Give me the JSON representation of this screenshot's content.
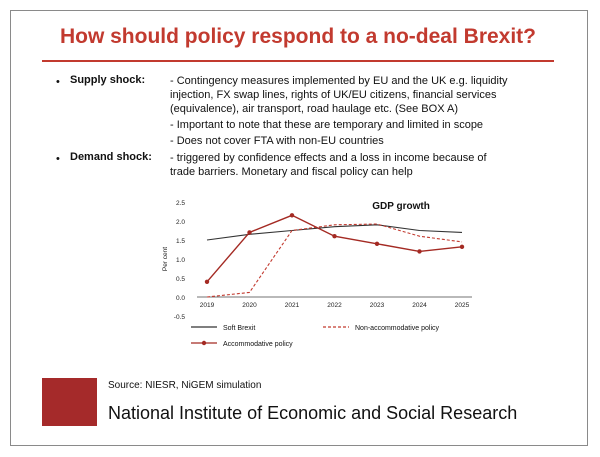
{
  "slide": {
    "title": "How should policy respond to a no-deal Brexit?",
    "supply": {
      "bullet": "•",
      "label": "Supply shock:",
      "lines": [
        "- Contingency measures implemented by EU and the UK e.g. liquidity",
        "injection, FX swap lines, rights of UK/EU citizens, financial services",
        "(equivalence), air transport, road haulage etc. (See BOX A)",
        "- Important to note that these are temporary and limited in scope",
        "- Does not cover FTA with non-EU countries"
      ]
    },
    "demand": {
      "bullet": "•",
      "label": "Demand shock:",
      "lines": [
        "- triggered by confidence effects and a loss in income because of",
        "trade barriers. Monetary and fiscal policy can help"
      ]
    },
    "source": "Source: NIESR, NiGEM simulation",
    "org": "National Institute of Economic and Social Research"
  },
  "chart_data": {
    "type": "line",
    "title": "GDP growth",
    "ylabel": "Per cent",
    "categories": [
      "2019",
      "2020",
      "2021",
      "2022",
      "2023",
      "2024",
      "2025"
    ],
    "yticks": [
      "2.5",
      "2.0",
      "1.5",
      "1.0",
      "0.5",
      "0.0",
      "-0.5"
    ],
    "ylim": [
      -0.5,
      2.5
    ],
    "series": [
      {
        "name": "Soft Brexit",
        "values": [
          1.5,
          1.65,
          1.75,
          1.85,
          1.9,
          1.75,
          1.7
        ],
        "color": "#333333",
        "style": "solid"
      },
      {
        "name": "Non-accommodative policy",
        "values": [
          0.0,
          0.12,
          1.75,
          1.9,
          1.92,
          1.6,
          1.45
        ],
        "color": "#c23a2f",
        "style": "dashed"
      },
      {
        "name": "Accommodative policy",
        "values": [
          0.4,
          1.7,
          2.15,
          1.6,
          1.4,
          1.2,
          1.32
        ],
        "color": "#a42a23",
        "style": "solid-marker"
      }
    ]
  }
}
